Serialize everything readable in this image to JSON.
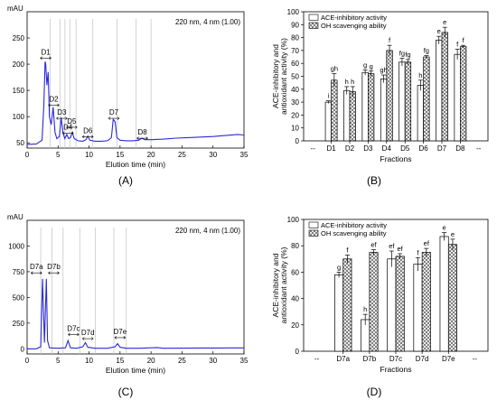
{
  "panel_labels": {
    "A": "(A)",
    "B": "(B)",
    "C": "(C)",
    "D": "(D)"
  },
  "chart_data": [
    {
      "type": "line",
      "panel": "A",
      "ylabel": "mAU",
      "xlabel": "Elution time (min)",
      "annotation": "220 nm, 4 nm (1.00)",
      "xlim": [
        0,
        35
      ],
      "ylim": [
        40,
        300
      ],
      "xticks": [
        0,
        5,
        10,
        15,
        20,
        25,
        30,
        35
      ],
      "yticks": [
        50,
        100,
        150,
        200,
        250
      ],
      "series_color": "#2a2ad8",
      "peak_labels": [
        {
          "label": "D1",
          "x": 3.0,
          "y": 210
        },
        {
          "label": "D2",
          "x": 4.3,
          "y": 120
        },
        {
          "label": "D3",
          "x": 5.6,
          "y": 95
        },
        {
          "label": "D4",
          "x": 6.6,
          "y": 67
        },
        {
          "label": "D5",
          "x": 7.2,
          "y": 78
        },
        {
          "label": "D6",
          "x": 9.8,
          "y": 60
        },
        {
          "label": "D7",
          "x": 14.0,
          "y": 95
        },
        {
          "label": "D8",
          "x": 18.6,
          "y": 57
        }
      ],
      "fraction_cuts": [
        3.7,
        5.3,
        6.1,
        6.9,
        7.9,
        10.6,
        14.5,
        17.6,
        20.0
      ],
      "points": [
        [
          0,
          47
        ],
        [
          1.5,
          48
        ],
        [
          2.4,
          55
        ],
        [
          2.7,
          120
        ],
        [
          2.9,
          205
        ],
        [
          3.0,
          200
        ],
        [
          3.2,
          160
        ],
        [
          3.4,
          185
        ],
        [
          3.6,
          100
        ],
        [
          3.9,
          85
        ],
        [
          4.2,
          118
        ],
        [
          4.5,
          70
        ],
        [
          4.8,
          58
        ],
        [
          5.2,
          62
        ],
        [
          5.5,
          98
        ],
        [
          5.8,
          68
        ],
        [
          6.1,
          58
        ],
        [
          6.4,
          66
        ],
        [
          6.7,
          58
        ],
        [
          7.0,
          60
        ],
        [
          7.3,
          70
        ],
        [
          7.6,
          58
        ],
        [
          8.2,
          54
        ],
        [
          9.0,
          53
        ],
        [
          9.5,
          56
        ],
        [
          9.8,
          63
        ],
        [
          10.1,
          55
        ],
        [
          11,
          53
        ],
        [
          12,
          53
        ],
        [
          13,
          54
        ],
        [
          13.6,
          60
        ],
        [
          13.9,
          95
        ],
        [
          14.2,
          90
        ],
        [
          14.5,
          60
        ],
        [
          15,
          55
        ],
        [
          16,
          54
        ],
        [
          17,
          54
        ],
        [
          18,
          55
        ],
        [
          18.5,
          59
        ],
        [
          19,
          56
        ],
        [
          20,
          56
        ],
        [
          22,
          57
        ],
        [
          24,
          59
        ],
        [
          26,
          60
        ],
        [
          28,
          61
        ],
        [
          30,
          62
        ],
        [
          32,
          64
        ],
        [
          34,
          66
        ],
        [
          35,
          65
        ]
      ]
    },
    {
      "type": "bar",
      "panel": "B",
      "ylabel": "ACE-inhibitory and antioxidant activity (%)",
      "xlabel": "Fractions",
      "categories": [
        "D1",
        "D2",
        "D3",
        "D4",
        "D5",
        "D6",
        "D7",
        "D8"
      ],
      "ylim": [
        0,
        100
      ],
      "yticks": [
        0,
        10,
        20,
        30,
        40,
        50,
        60,
        70,
        80,
        90,
        100
      ],
      "legend_position": "top-left",
      "series": [
        {
          "name": "ACE-inhibitory activity",
          "pattern": "open",
          "values": [
            30,
            39,
            53,
            48,
            61,
            43,
            78,
            67
          ],
          "errors": [
            1,
            3,
            2,
            3,
            3,
            4,
            3,
            4
          ],
          "letters": [
            "i",
            "h",
            "g",
            "gh",
            "fg",
            "h",
            "e",
            "f"
          ]
        },
        {
          "name": "OH scavenging ability",
          "pattern": "crosshatch",
          "values": [
            47,
            38,
            52,
            70,
            61,
            65,
            84,
            73
          ],
          "errors": [
            5,
            4,
            2,
            4,
            2,
            1,
            4,
            1
          ],
          "letters": [
            "gh",
            "h",
            "g",
            "f",
            "fg",
            "fg",
            "e",
            "f"
          ]
        }
      ]
    },
    {
      "type": "line",
      "panel": "C",
      "ylabel": "mAU",
      "xlabel": "Elution time (min)",
      "annotation": "220 nm, 4 nm (1.00)",
      "xlim": [
        0,
        35
      ],
      "ylim": [
        -50,
        1250
      ],
      "xticks": [
        0,
        5,
        10,
        15,
        20,
        25,
        30,
        35
      ],
      "yticks": [
        0,
        250,
        500,
        750,
        1000
      ],
      "series_color": "#2a2ad8",
      "peak_labels": [
        {
          "label": "D7a",
          "x": 1.5,
          "y": 730
        },
        {
          "label": "D7b",
          "x": 4.3,
          "y": 730
        },
        {
          "label": "D7c",
          "x": 7.5,
          "y": 130
        },
        {
          "label": "D7d",
          "x": 9.8,
          "y": 90
        },
        {
          "label": "D7e",
          "x": 15.0,
          "y": 100
        }
      ],
      "fraction_cuts": [
        2.2,
        4.0,
        5.8,
        8.5,
        11.0,
        14.0,
        16.0
      ],
      "points": [
        [
          0,
          0
        ],
        [
          1.5,
          0
        ],
        [
          2.2,
          20
        ],
        [
          2.5,
          680
        ],
        [
          2.8,
          60
        ],
        [
          3.1,
          680
        ],
        [
          3.3,
          80
        ],
        [
          3.6,
          10
        ],
        [
          5,
          5
        ],
        [
          6.2,
          10
        ],
        [
          6.6,
          80
        ],
        [
          7.0,
          10
        ],
        [
          8,
          5
        ],
        [
          9,
          20
        ],
        [
          9.4,
          60
        ],
        [
          9.8,
          15
        ],
        [
          11,
          5
        ],
        [
          13,
          5
        ],
        [
          14.2,
          20
        ],
        [
          14.6,
          50
        ],
        [
          15,
          15
        ],
        [
          16,
          5
        ],
        [
          18,
          5
        ],
        [
          21,
          12
        ],
        [
          22,
          5
        ],
        [
          25,
          6
        ],
        [
          28,
          8
        ],
        [
          31,
          8
        ],
        [
          33,
          9
        ],
        [
          35,
          9
        ]
      ]
    },
    {
      "type": "bar",
      "panel": "D",
      "ylabel": "ACE-inhibitory and antioxidant activity (%)",
      "xlabel": "Fractions",
      "categories": [
        "D7a",
        "D7b",
        "D7c",
        "D7d",
        "D7e"
      ],
      "ylim": [
        0,
        100
      ],
      "yticks": [
        0,
        20,
        40,
        60,
        80,
        100
      ],
      "legend_position": "top-left",
      "series": [
        {
          "name": "ACE-inhibitory activity",
          "pattern": "open",
          "values": [
            58,
            24,
            70,
            66,
            87
          ],
          "errors": [
            2,
            4,
            6,
            5,
            3
          ],
          "letters": [
            "g",
            "h",
            "ef",
            "f",
            "e"
          ]
        },
        {
          "name": "OH scavenging ability",
          "pattern": "crosshatch",
          "values": [
            70,
            75,
            72,
            75,
            81
          ],
          "errors": [
            3,
            2,
            2,
            3,
            4
          ],
          "letters": [
            "f",
            "ef",
            "ef",
            "ef",
            "e"
          ]
        }
      ]
    }
  ]
}
